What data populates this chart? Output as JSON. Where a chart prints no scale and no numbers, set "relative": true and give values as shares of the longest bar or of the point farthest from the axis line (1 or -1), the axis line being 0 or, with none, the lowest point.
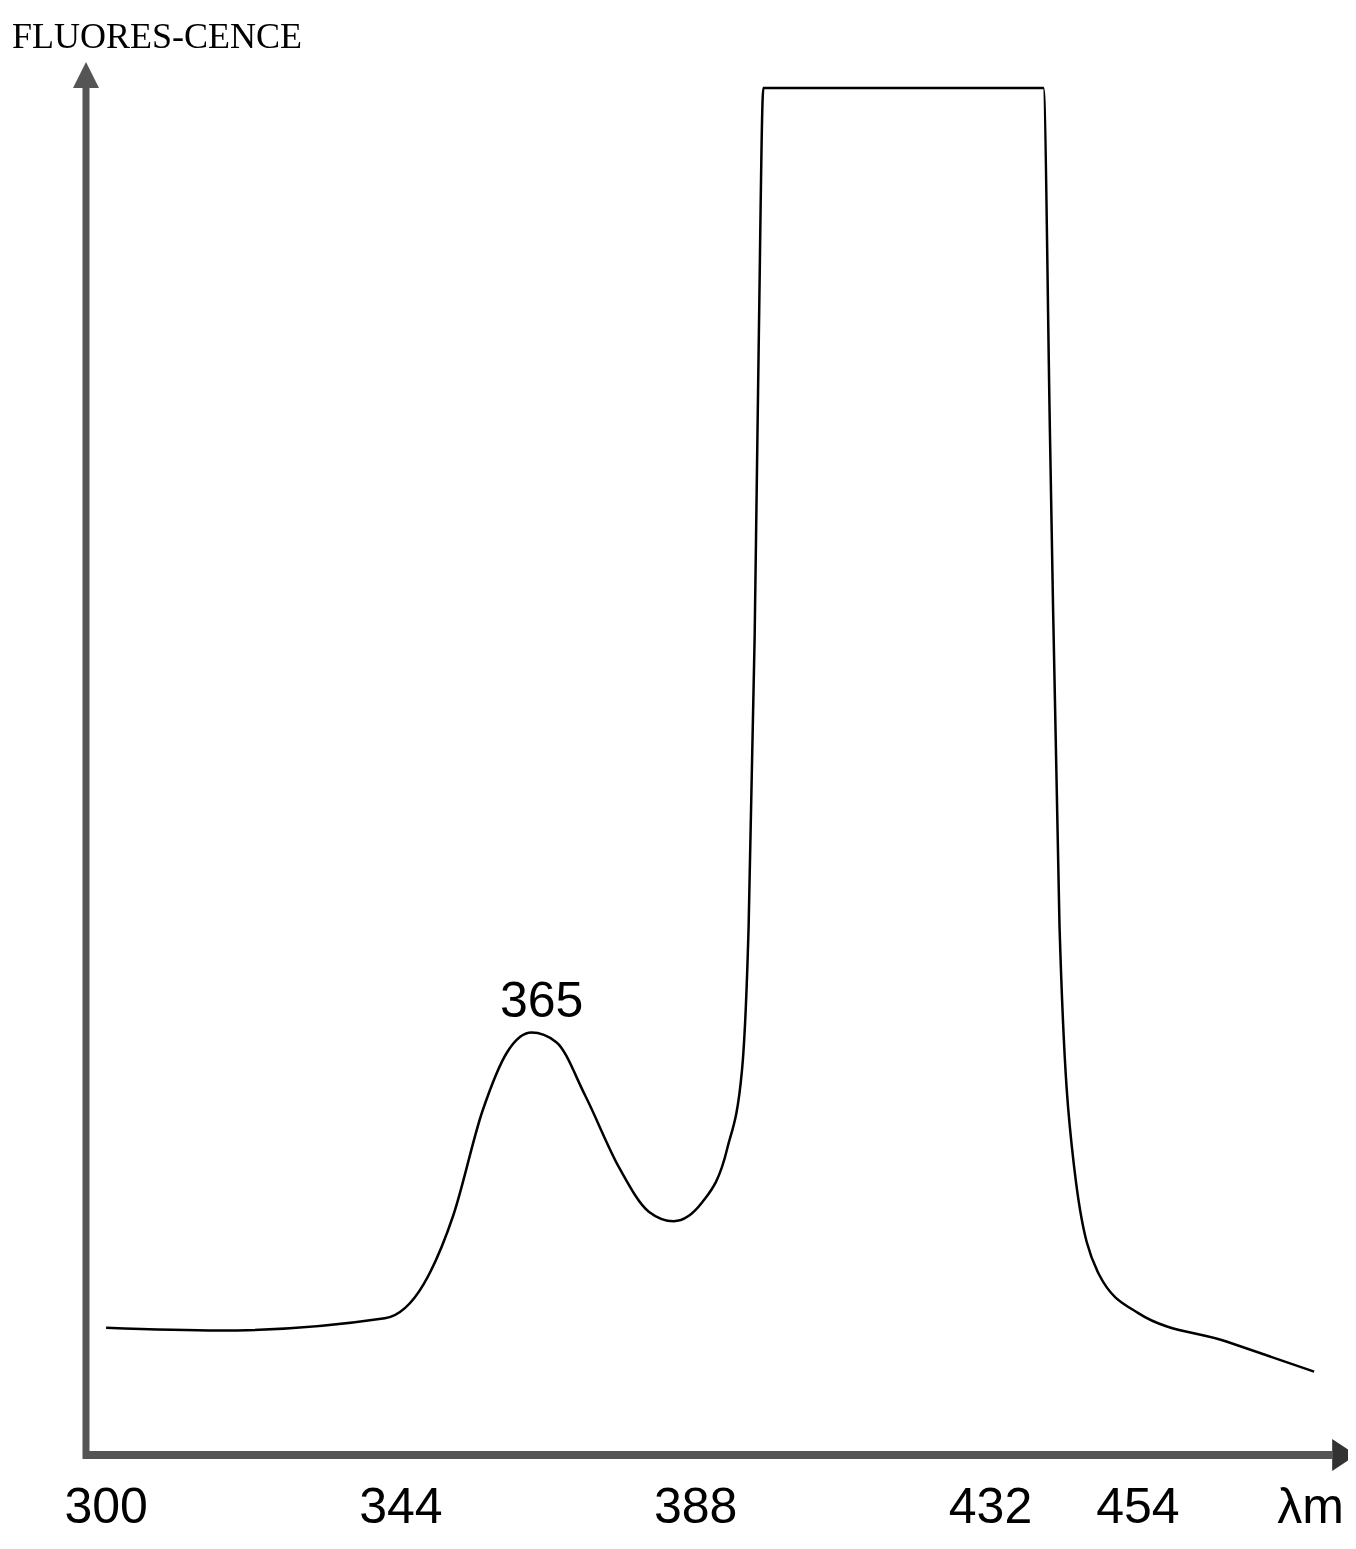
{
  "chart_data": {
    "type": "line",
    "relative": true,
    "xlabel": "λm",
    "ylabel": "FLUORES-CENCE",
    "xlim": [
      297,
      483
    ],
    "xticks": [
      300,
      344,
      388,
      432,
      454
    ],
    "color": "#000000",
    "grid": false,
    "marker": "none",
    "line_style": "solid",
    "x": [
      300,
      316.8,
      341.6,
      347.4,
      351.8,
      356.2,
      359.9,
      363.5,
      367.2,
      371.5,
      376.6,
      381,
      384.7,
      389,
      392.7,
      394.9,
      395.9,
      396.8,
      397.4,
      398.1,
      439.9,
      440.9,
      442.3,
      444.5,
      448.2,
      454,
      467.2,
      480.3
    ],
    "values": [
      0.093,
      0.091,
      0.1,
      0.125,
      0.175,
      0.252,
      0.295,
      0.309,
      0.302,
      0.263,
      0.21,
      0.178,
      0.171,
      0.185,
      0.224,
      0.281,
      0.387,
      0.599,
      0.811,
      1,
      1,
      0.74,
      0.387,
      0.21,
      0.132,
      0.104,
      0.083,
      0.061
    ],
    "annotations": [
      {
        "text": "365",
        "x": 365,
        "y": 0.309
      }
    ]
  }
}
